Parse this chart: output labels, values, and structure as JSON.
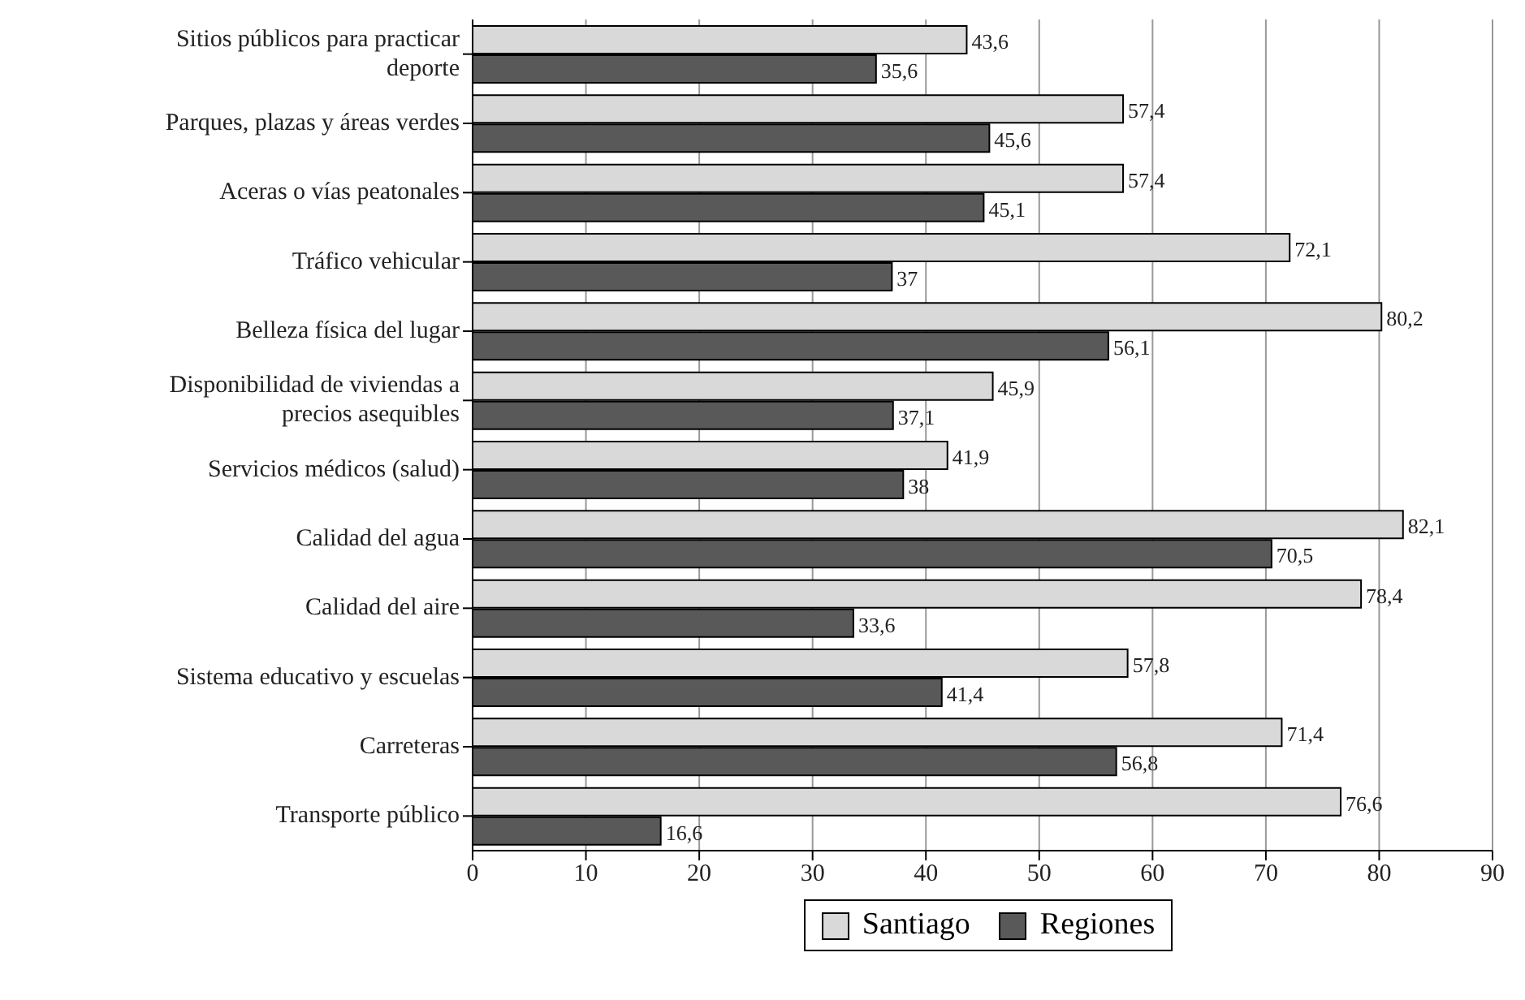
{
  "chart_data": {
    "type": "bar",
    "orientation": "horizontal",
    "categories": [
      "Sitios públicos para practicar deporte",
      "Parques, plazas y áreas verdes",
      "Aceras o vías peatonales",
      "Tráfico vehicular",
      "Belleza física del lugar",
      "Disponibilidad de viviendas a precios asequibles",
      "Servicios médicos (salud)",
      "Calidad del agua",
      "Calidad del aire",
      "Sistema educativo y escuelas",
      "Carreteras",
      "Transporte público"
    ],
    "series": [
      {
        "name": "Santiago",
        "color": "#d9d9d9",
        "values": [
          43.6,
          57.4,
          57.4,
          72.1,
          80.2,
          45.9,
          41.9,
          82.1,
          78.4,
          57.8,
          71.4,
          76.6
        ],
        "value_labels": [
          "43,6",
          "57,4",
          "57,4",
          "72,1",
          "80,2",
          "45,9",
          "41,9",
          "82,1",
          "78,4",
          "57,8",
          "71,4",
          "76,6"
        ]
      },
      {
        "name": "Regiones",
        "color": "#595959",
        "values": [
          35.6,
          45.6,
          45.1,
          37,
          56.1,
          37.1,
          38,
          70.5,
          33.6,
          41.4,
          56.8,
          16.6
        ],
        "value_labels": [
          "35,6",
          "45,6",
          "45,1",
          "37",
          "56,1",
          "37,1",
          "38",
          "70,5",
          "33,6",
          "41,4",
          "56,8",
          "16,6"
        ]
      }
    ],
    "xlim": [
      0,
      90
    ],
    "xticks": [
      0,
      10,
      20,
      30,
      40,
      50,
      60,
      70,
      80,
      90
    ],
    "grid": "x",
    "legend": "bottom"
  }
}
